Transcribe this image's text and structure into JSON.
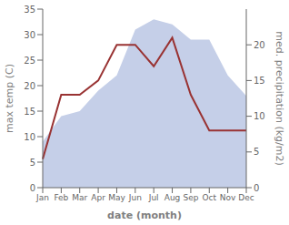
{
  "chart_data": {
    "type": "area",
    "xlabel": "date (month)",
    "ylabel": "max temp (C)",
    "y2label": "med. precipitation (kg/m2)",
    "categories": [
      "Jan",
      "Feb",
      "Mar",
      "Apr",
      "May",
      "Jun",
      "Jul",
      "Aug",
      "Sep",
      "Oct",
      "Nov",
      "Dec"
    ],
    "series": [
      {
        "type": "area",
        "color": "#c5cfe8",
        "values": [
          9.0,
          14.0,
          15.0,
          19.0,
          22.0,
          31.0,
          33.0,
          32.0,
          29.0,
          29.0,
          22.0,
          18.0
        ]
      },
      {
        "type": "line",
        "color": "#993333",
        "axis": "y2",
        "values": [
          4.0,
          13.0,
          13.0,
          15.0,
          20.0,
          20.0,
          17.0,
          21.0,
          13.0,
          8.0,
          8.0,
          8.0
        ]
      }
    ],
    "ylim": [
      0,
      35
    ],
    "yticks": [
      0,
      5,
      10,
      15,
      20,
      25,
      30,
      35
    ],
    "y2lim": [
      0,
      25
    ],
    "y2ticks": [
      0,
      5,
      10,
      15,
      20
    ],
    "grid": false
  }
}
